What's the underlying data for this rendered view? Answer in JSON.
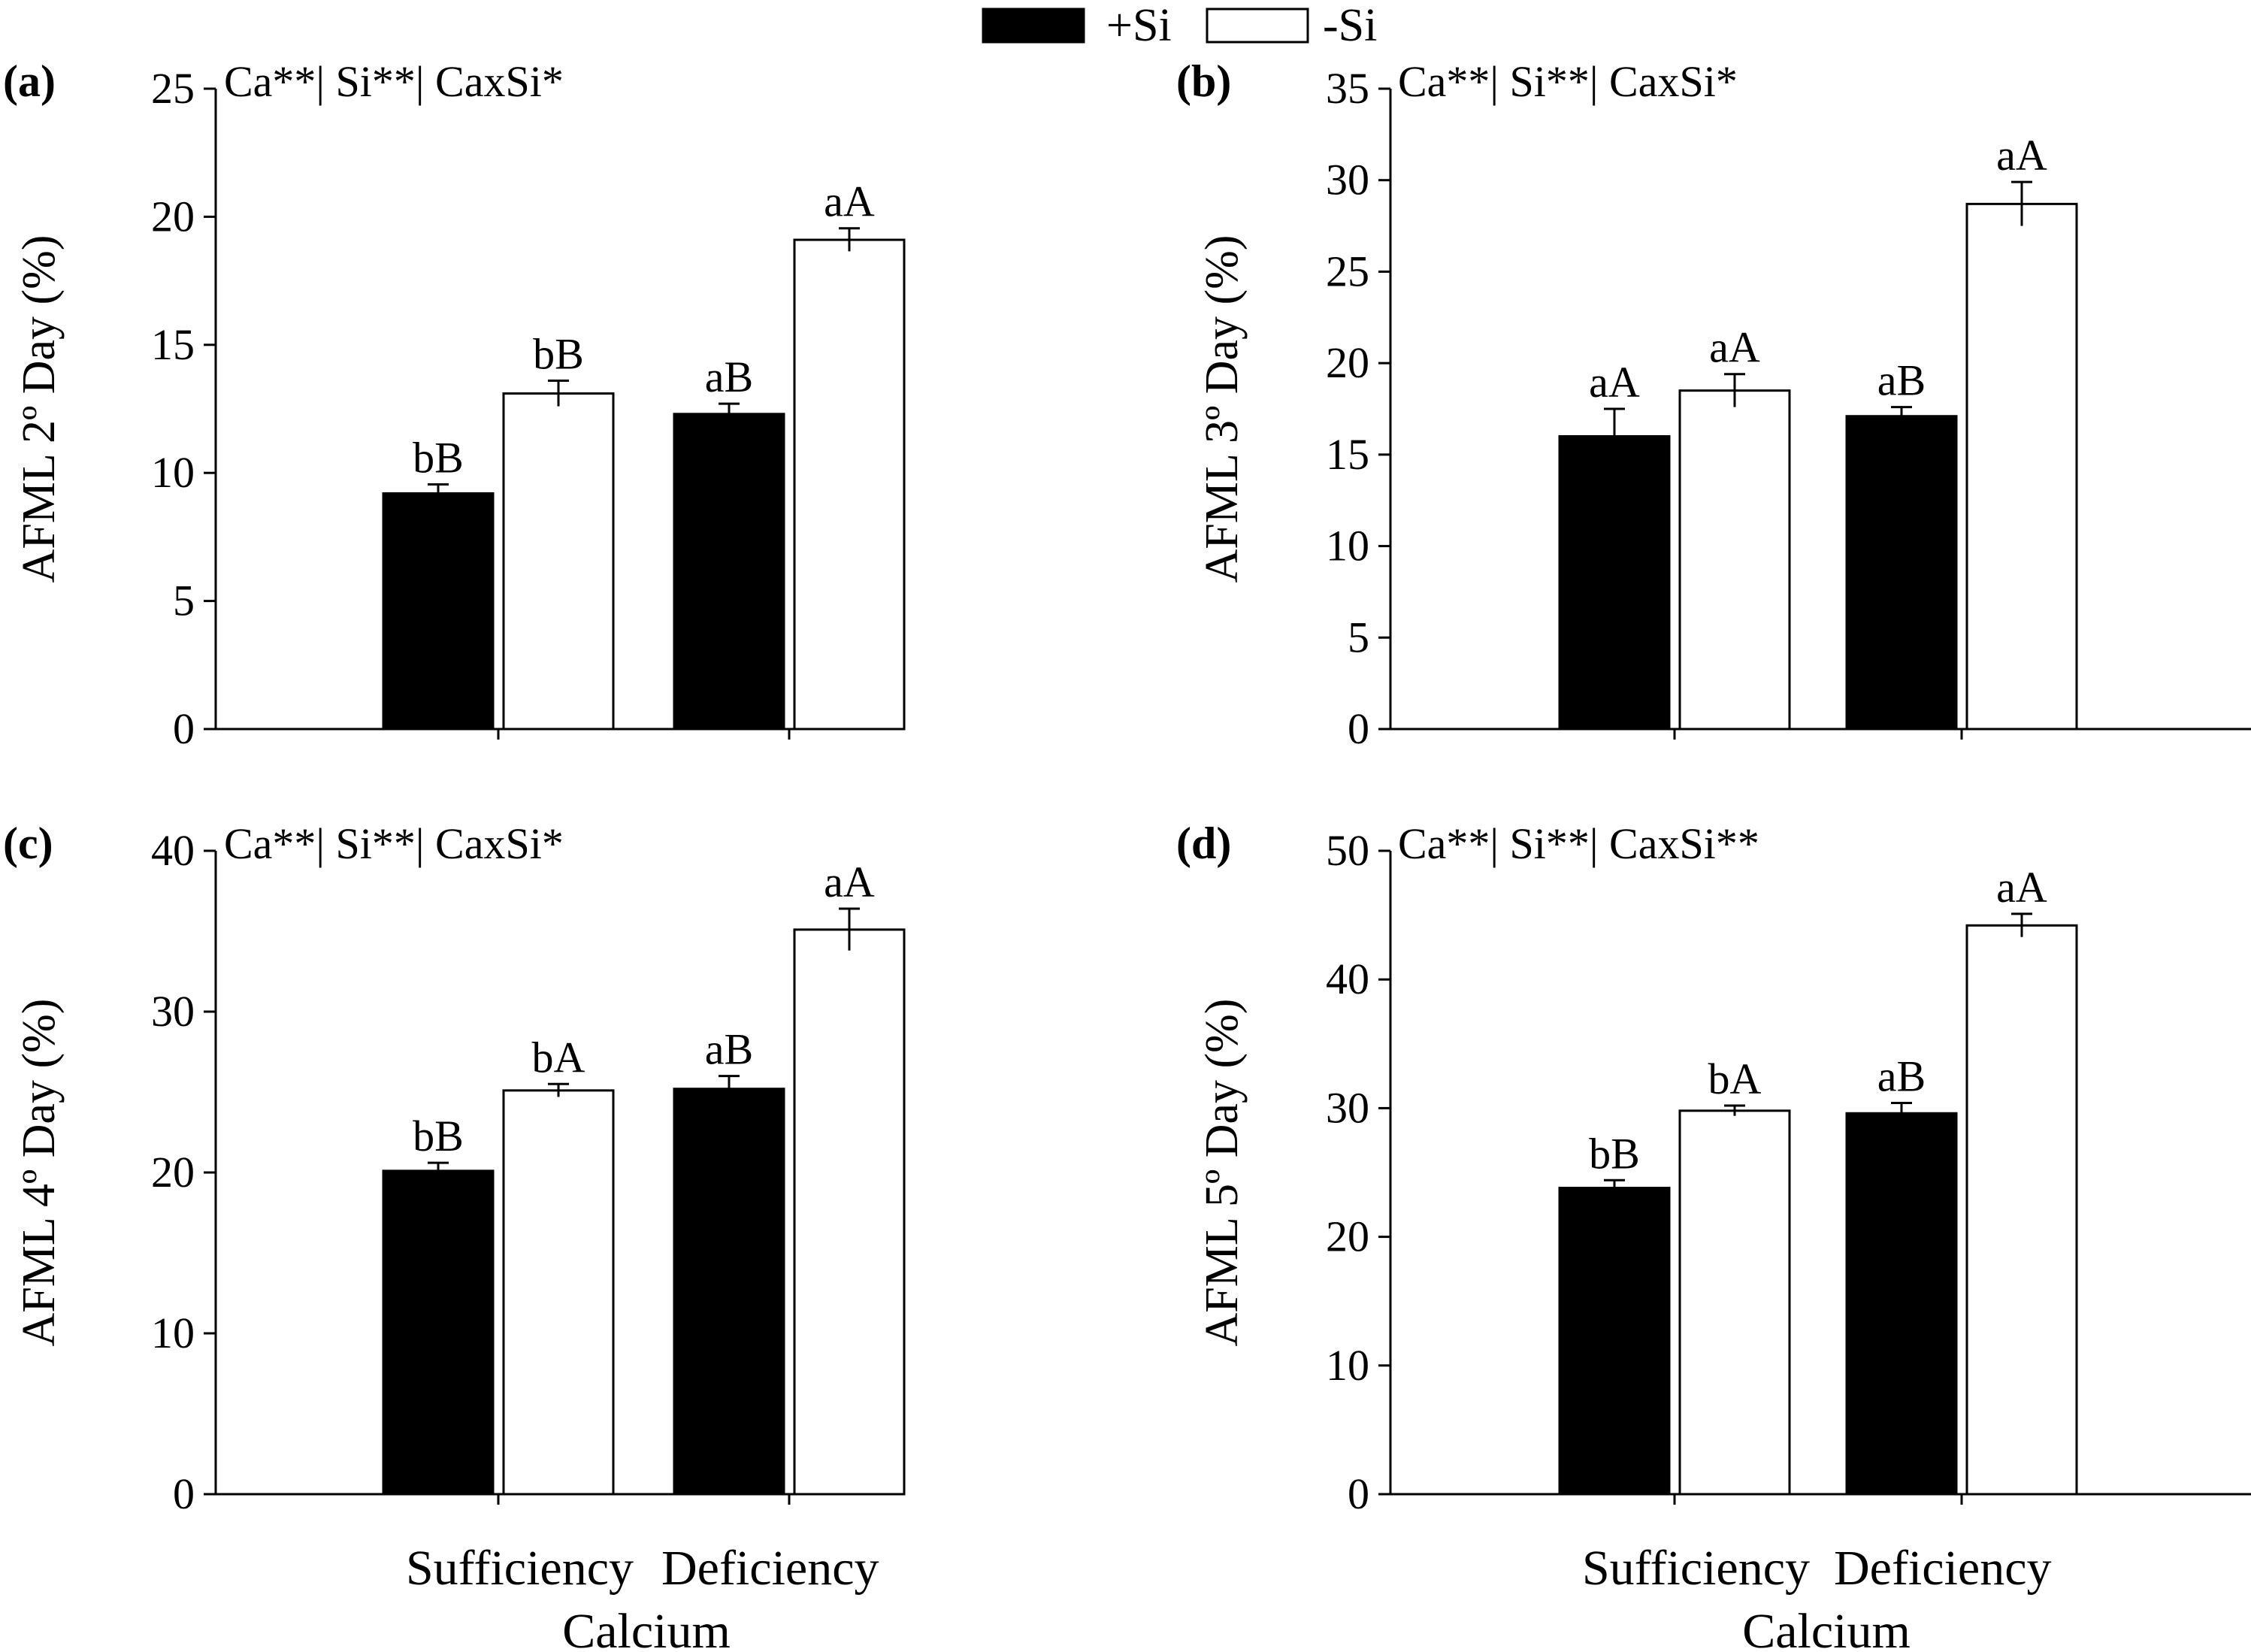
{
  "legend": [
    {
      "label": "+Si",
      "color": "#000000"
    },
    {
      "label": "-Si",
      "color": "#ffffff"
    }
  ],
  "chart_data": [
    {
      "type": "bar",
      "panel": "(a)",
      "stats": "Ca**| Si**| CaxSi*",
      "ylabel": "AFML 2º Day (%)",
      "xlabel": "Calcium",
      "categories": [
        "Sufficiency",
        "Deficiency"
      ],
      "ylim": [
        0,
        25
      ],
      "yticks": [
        0,
        5,
        10,
        15,
        20,
        25
      ],
      "series": [
        {
          "name": "+Si",
          "values": [
            9.2,
            12.3
          ],
          "errors": [
            0.35,
            0.4
          ],
          "labels": [
            "bB",
            "aB"
          ]
        },
        {
          "name": "-Si",
          "values": [
            13.1,
            19.1
          ],
          "errors": [
            0.5,
            0.45
          ],
          "labels": [
            "bB",
            "aA"
          ]
        }
      ]
    },
    {
      "type": "bar",
      "panel": "(b)",
      "stats": "Ca**| Si**| CaxSi*",
      "ylabel": "AFML 3º Day (%)",
      "xlabel": "Calcium",
      "categories": [
        "Sufficiency",
        "Deficiency"
      ],
      "ylim": [
        0,
        35
      ],
      "yticks": [
        0,
        5,
        10,
        15,
        20,
        25,
        30,
        35
      ],
      "series": [
        {
          "name": "+Si",
          "values": [
            16.0,
            17.1
          ],
          "errors": [
            1.5,
            0.5
          ],
          "labels": [
            "aA",
            "aB"
          ]
        },
        {
          "name": "-Si",
          "values": [
            18.5,
            28.7
          ],
          "errors": [
            0.9,
            1.2
          ],
          "labels": [
            "aA",
            "aA"
          ]
        }
      ]
    },
    {
      "type": "bar",
      "panel": "(c)",
      "stats": "Ca**| Si**| CaxSi*",
      "ylabel": "AFML 4º Day (%)",
      "xlabel": "Calcium",
      "categories": [
        "Sufficiency",
        "Deficiency"
      ],
      "ylim": [
        0,
        40
      ],
      "yticks": [
        0,
        10,
        20,
        30,
        40
      ],
      "series": [
        {
          "name": "+Si",
          "values": [
            20.1,
            25.2
          ],
          "errors": [
            0.5,
            0.8
          ],
          "labels": [
            "bB",
            "aB"
          ]
        },
        {
          "name": "-Si",
          "values": [
            25.1,
            35.1
          ],
          "errors": [
            0.4,
            1.3
          ],
          "labels": [
            "bA",
            "aA"
          ]
        }
      ]
    },
    {
      "type": "bar",
      "panel": "(d)",
      "stats": "Ca**| Si**| CaxSi**",
      "ylabel": "AFML 5º Day (%)",
      "xlabel": "Calcium",
      "categories": [
        "Sufficiency",
        "Deficiency"
      ],
      "ylim": [
        0,
        50
      ],
      "yticks": [
        0,
        10,
        20,
        30,
        40,
        50
      ],
      "series": [
        {
          "name": "+Si",
          "values": [
            23.8,
            29.6
          ],
          "errors": [
            0.6,
            0.8
          ],
          "labels": [
            "bB",
            "aB"
          ]
        },
        {
          "name": "-Si",
          "values": [
            29.8,
            44.2
          ],
          "errors": [
            0.4,
            0.9
          ],
          "labels": [
            "bA",
            "aA"
          ]
        }
      ]
    }
  ]
}
